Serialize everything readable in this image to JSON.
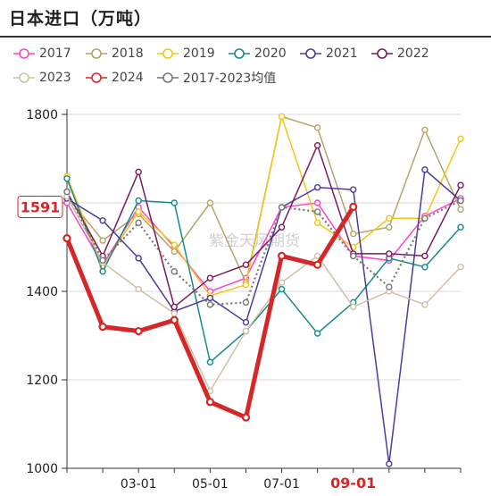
{
  "title": "日本进口（万吨）",
  "watermark": "紫金天风期货",
  "chart_data": {
    "type": "line",
    "x": [
      "2025-01-01",
      "2025-02-01",
      "2025-03-01",
      "2025-04-01",
      "2025-05-01",
      "2025-06-01",
      "2025-07-01",
      "2025-08-01",
      "2025-09-01",
      "2025-10-01",
      "2025-11-01",
      "2025-12-01"
    ],
    "x_tick_labels": [
      "03-01",
      "05-01",
      "07-01",
      "09-01"
    ],
    "x_highlight_label": "09-01",
    "ylim": [
      1000,
      1800
    ],
    "y_ticks": [
      1000,
      1200,
      1400,
      1600,
      1800
    ],
    "y_tick_labels": [
      "1000",
      "1200",
      "1400",
      "1600",
      "1800"
    ],
    "callout": {
      "label": "1591",
      "value": 1591,
      "color": "#d62728"
    },
    "grid": true,
    "legend_position": "top",
    "series": [
      {
        "name": "2017",
        "color": "#ff44cc",
        "style": "solid",
        "width": 1.5,
        "values": [
          1600,
          1460,
          1590,
          1500,
          1400,
          1430,
          1590,
          1600,
          1480,
          1470,
          1570,
          1610
        ]
      },
      {
        "name": "2018",
        "color": "#b5a46a",
        "style": "solid",
        "width": 1.5,
        "values": [
          1615,
          1515,
          1575,
          1490,
          1600,
          1420,
          1795,
          1770,
          1530,
          1545,
          1765,
          1585
        ]
      },
      {
        "name": "2019",
        "color": "#f5c518",
        "style": "solid",
        "width": 1.5,
        "values": [
          1660,
          1455,
          1580,
          1505,
          1390,
          1415,
          1795,
          1555,
          1500,
          1565,
          1565,
          1745
        ]
      },
      {
        "name": "2020",
        "color": "#1a8a8a",
        "style": "solid",
        "width": 1.5,
        "values": [
          1655,
          1445,
          1605,
          1600,
          1240,
          1310,
          1405,
          1305,
          1375,
          1475,
          1455,
          1545
        ]
      },
      {
        "name": "2021",
        "color": "#4b3c9e",
        "style": "solid",
        "width": 1.5,
        "values": [
          1610,
          1560,
          1475,
          1355,
          1385,
          1330,
          1590,
          1635,
          1630,
          1010,
          1675,
          1605
        ]
      },
      {
        "name": "2022",
        "color": "#7a1a5e",
        "style": "solid",
        "width": 1.5,
        "values": [
          1625,
          1480,
          1670,
          1365,
          1430,
          1460,
          1545,
          1730,
          1485,
          1485,
          1480,
          1640
        ]
      },
      {
        "name": "2023",
        "color": "#cfc0a8",
        "style": "solid",
        "width": 1.5,
        "values": [
          1615,
          1465,
          1405,
          1350,
          1175,
          1310,
          1420,
          1480,
          1365,
          1400,
          1370,
          1455
        ]
      },
      {
        "name": "2024",
        "color": "#d62728",
        "style": "solid",
        "width": 5,
        "values": [
          1520,
          1320,
          1310,
          1335,
          1150,
          1115,
          1480,
          1460,
          1591,
          null,
          null,
          null
        ]
      },
      {
        "name": "2017-2023均值",
        "color": "#777777",
        "style": "dotted",
        "width": 2.2,
        "values": [
          1625,
          1470,
          1555,
          1445,
          1370,
          1375,
          1590,
          1580,
          1480,
          1410,
          1565,
          1605
        ]
      }
    ]
  }
}
